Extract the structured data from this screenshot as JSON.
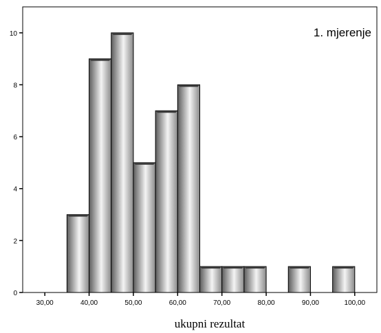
{
  "chart_data": {
    "type": "bar",
    "subtype": "histogram",
    "annotation": "1. mjerenje",
    "xlabel": "ukupni rezultat",
    "ylabel": "",
    "xlim": [
      25,
      105
    ],
    "ylim": [
      0,
      11
    ],
    "xticks": [
      "30,00",
      "40,00",
      "50,00",
      "60,00",
      "70,00",
      "80,00",
      "90,00",
      "100,00"
    ],
    "xtick_values": [
      30,
      40,
      50,
      60,
      70,
      80,
      90,
      100
    ],
    "yticks": [
      "0",
      "2",
      "4",
      "6",
      "8",
      "10"
    ],
    "ytick_values": [
      0,
      2,
      4,
      6,
      8,
      10
    ],
    "grid": false,
    "bin_width": 5,
    "bins": [
      {
        "x0": 35,
        "x1": 40,
        "count": 3
      },
      {
        "x0": 40,
        "x1": 45,
        "count": 9
      },
      {
        "x0": 45,
        "x1": 50,
        "count": 10
      },
      {
        "x0": 50,
        "x1": 55,
        "count": 5
      },
      {
        "x0": 55,
        "x1": 60,
        "count": 7
      },
      {
        "x0": 60,
        "x1": 65,
        "count": 8
      },
      {
        "x0": 65,
        "x1": 70,
        "count": 1
      },
      {
        "x0": 70,
        "x1": 75,
        "count": 1
      },
      {
        "x0": 75,
        "x1": 80,
        "count": 1
      },
      {
        "x0": 85,
        "x1": 90,
        "count": 1
      },
      {
        "x0": 95,
        "x1": 100,
        "count": 1
      }
    ],
    "colors": {
      "bar_dark": "#6e6e6e",
      "bar_light": "#f2f2f2",
      "edge": "#000000"
    }
  }
}
